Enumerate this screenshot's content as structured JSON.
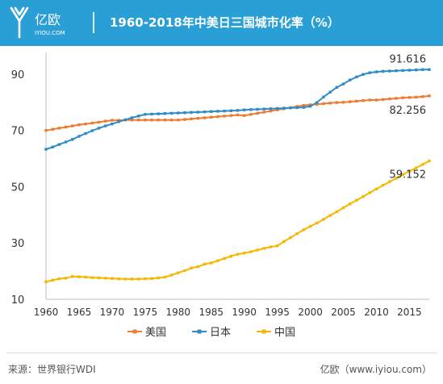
{
  "header": {
    "brand_cn": "亿欧",
    "brand_url": "IYIOU.COM",
    "title": "1960-2018年中美日三国城市化率（%）",
    "bg_color": "#2a9fd6"
  },
  "footer": {
    "source": "来源：世界银行WDI",
    "credit": "亿欧（www.iyiou.com）"
  },
  "chart_data": {
    "type": "line",
    "title": "1960-2018年中美日三国城市化率（%）",
    "xlabel": "",
    "ylabel": "",
    "xlim": [
      1960,
      2018
    ],
    "ylim": [
      10,
      100
    ],
    "yticks": [
      10,
      30,
      50,
      70,
      90
    ],
    "xticks": [
      1960,
      1965,
      1970,
      1975,
      1980,
      1985,
      1990,
      1995,
      2000,
      2005,
      2010,
      2015
    ],
    "grid": false,
    "legend_position": "bottom",
    "x": [
      1960,
      1961,
      1962,
      1963,
      1964,
      1965,
      1966,
      1967,
      1968,
      1969,
      1970,
      1971,
      1972,
      1973,
      1974,
      1975,
      1976,
      1977,
      1978,
      1979,
      1980,
      1981,
      1982,
      1983,
      1984,
      1985,
      1986,
      1987,
      1988,
      1989,
      1990,
      1991,
      1992,
      1993,
      1994,
      1995,
      1996,
      1997,
      1998,
      1999,
      2000,
      2001,
      2002,
      2003,
      2004,
      2005,
      2006,
      2007,
      2008,
      2009,
      2010,
      2011,
      2012,
      2013,
      2014,
      2015,
      2016,
      2017,
      2018
    ],
    "series": [
      {
        "name": "美国",
        "color": "#ed7d31",
        "end_label": "82.256",
        "values": [
          70.0,
          70.4,
          70.8,
          71.2,
          71.6,
          72.0,
          72.3,
          72.6,
          72.9,
          73.3,
          73.6,
          73.6,
          73.7,
          73.7,
          73.7,
          73.7,
          73.7,
          73.7,
          73.7,
          73.7,
          73.7,
          73.9,
          74.1,
          74.3,
          74.5,
          74.7,
          74.9,
          75.1,
          75.3,
          75.5,
          75.3,
          75.7,
          76.1,
          76.5,
          76.9,
          77.3,
          77.7,
          78.1,
          78.5,
          78.9,
          79.1,
          79.3,
          79.5,
          79.7,
          79.9,
          80.0,
          80.2,
          80.4,
          80.6,
          80.8,
          80.8,
          81.0,
          81.2,
          81.4,
          81.6,
          81.7,
          81.8,
          82.0,
          82.256
        ]
      },
      {
        "name": "日本",
        "color": "#2e8bc7",
        "end_label": "91.616",
        "values": [
          63.3,
          64.1,
          65.0,
          65.9,
          66.8,
          67.9,
          68.9,
          69.9,
          70.8,
          71.6,
          72.3,
          73.1,
          73.8,
          74.5,
          75.1,
          75.7,
          75.8,
          75.9,
          76.0,
          76.1,
          76.2,
          76.3,
          76.4,
          76.5,
          76.6,
          76.7,
          76.8,
          76.9,
          77.0,
          77.1,
          77.3,
          77.4,
          77.5,
          77.6,
          77.7,
          77.8,
          77.9,
          78.0,
          78.1,
          78.2,
          78.6,
          79.9,
          81.9,
          83.6,
          85.3,
          86.5,
          87.9,
          89.0,
          89.9,
          90.5,
          90.8,
          91.0,
          91.1,
          91.2,
          91.3,
          91.4,
          91.5,
          91.6,
          91.616
        ]
      },
      {
        "name": "中国",
        "color": "#f5b800",
        "end_label": "59.152",
        "values": [
          16.2,
          16.8,
          17.3,
          17.5,
          18.1,
          18.0,
          17.9,
          17.7,
          17.6,
          17.5,
          17.4,
          17.3,
          17.2,
          17.2,
          17.2,
          17.3,
          17.4,
          17.6,
          17.9,
          18.6,
          19.4,
          20.2,
          21.1,
          21.6,
          22.5,
          22.9,
          23.7,
          24.5,
          25.3,
          26.0,
          26.4,
          26.9,
          27.5,
          28.1,
          28.6,
          29.0,
          30.5,
          31.9,
          33.3,
          34.7,
          35.9,
          37.1,
          38.4,
          39.8,
          41.1,
          42.5,
          43.9,
          45.2,
          46.5,
          47.9,
          49.2,
          50.5,
          51.8,
          53.0,
          54.3,
          55.5,
          56.7,
          57.9,
          59.152
        ]
      }
    ]
  }
}
